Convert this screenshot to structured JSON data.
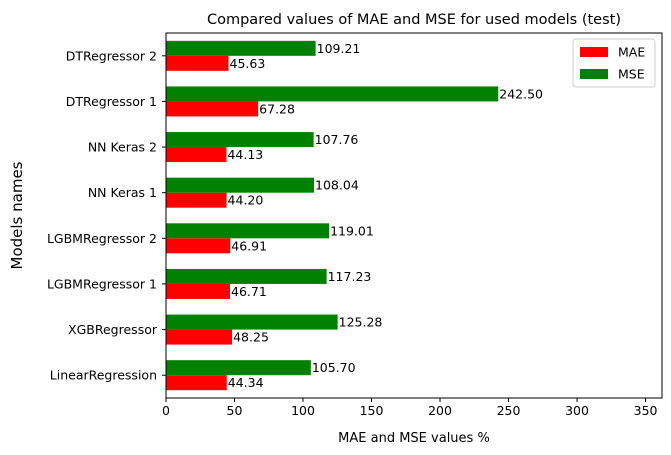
{
  "chart_data": {
    "type": "bar",
    "orientation": "horizontal",
    "title": "Compared values of MAE and MSE for used models (test)",
    "xlabel": "MAE and MSE values %",
    "ylabel": "Models names",
    "xlim": [
      0,
      362
    ],
    "xticks": [
      0,
      50,
      100,
      150,
      200,
      250,
      300,
      350
    ],
    "categories": [
      "LinearRegression",
      "XGBRegressor",
      "LGBMRegressor 1",
      "LGBMRegressor 2",
      "NN Keras 1",
      "NN Keras 2",
      "DTRegressor 1",
      "DTRegressor 2"
    ],
    "series": [
      {
        "name": "MAE",
        "color": "#ff0000",
        "values": [
          44.34,
          48.25,
          46.71,
          46.91,
          44.2,
          44.13,
          67.28,
          45.63
        ],
        "labels": [
          "44.34",
          "48.25",
          "46.71",
          "46.91",
          "44.20",
          "44.13",
          "67.28",
          "45.63"
        ]
      },
      {
        "name": "MSE",
        "color": "#008000",
        "values": [
          105.7,
          125.28,
          117.23,
          119.01,
          108.04,
          107.76,
          242.5,
          109.21
        ],
        "labels": [
          "105.70",
          "125.28",
          "117.23",
          "119.01",
          "108.04",
          "107.76",
          "242.50",
          "109.21"
        ]
      }
    ],
    "legend": {
      "position": "top-right",
      "order": [
        "MAE",
        "MSE"
      ]
    },
    "grid": false
  }
}
